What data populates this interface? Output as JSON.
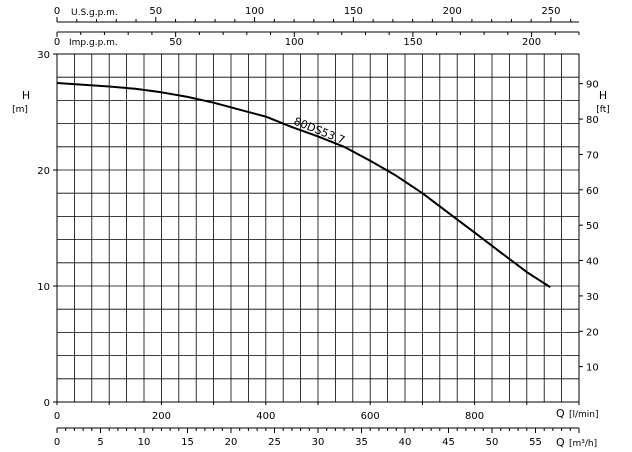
{
  "chart_data": {
    "type": "line",
    "title": "",
    "left_axis": {
      "label": "H",
      "unit": "[m]",
      "range": [
        0,
        30
      ],
      "ticks": [
        "0",
        "10",
        "20",
        "30"
      ]
    },
    "right_axis": {
      "label": "H",
      "unit": "[ft]",
      "range": [
        0,
        98.4
      ],
      "ticks": [
        "10",
        "20",
        "30",
        "40",
        "50",
        "60",
        "70",
        "80",
        "90"
      ]
    },
    "bottom_axis": {
      "label": "Q",
      "unit": "[l/min]",
      "range": [
        0,
        1000
      ],
      "ticks": [
        "0",
        "200",
        "400",
        "600",
        "800"
      ]
    },
    "bottom_axis_2": {
      "label": "Q",
      "unit": "[m³/h]",
      "range": [
        0,
        60
      ],
      "ticks": [
        "0",
        "5",
        "10",
        "15",
        "20",
        "25",
        "30",
        "35",
        "40",
        "45",
        "50",
        "55"
      ]
    },
    "top_axis_us": {
      "label": "U.S.g.p.m.",
      "range": [
        0,
        264.2
      ],
      "ticks": [
        "0",
        "50",
        "100",
        "150",
        "200",
        "250"
      ]
    },
    "top_axis_imp": {
      "label": "Imp.g.p.m.",
      "range": [
        0,
        220
      ],
      "ticks": [
        "0",
        "50",
        "100",
        "150",
        "200"
      ]
    },
    "grid": true,
    "series": [
      {
        "name": "80DS53.7",
        "x_unit": "l/min",
        "y_unit": "m",
        "x": [
          0,
          50,
          100,
          150,
          200,
          250,
          300,
          350,
          400,
          450,
          500,
          550,
          600,
          650,
          700,
          750,
          800,
          850,
          900,
          945
        ],
        "y": [
          27.5,
          27.35,
          27.2,
          27.0,
          26.7,
          26.3,
          25.8,
          25.2,
          24.6,
          23.7,
          22.9,
          22.0,
          20.8,
          19.5,
          18.0,
          16.3,
          14.6,
          12.9,
          11.2,
          9.9
        ]
      }
    ]
  }
}
